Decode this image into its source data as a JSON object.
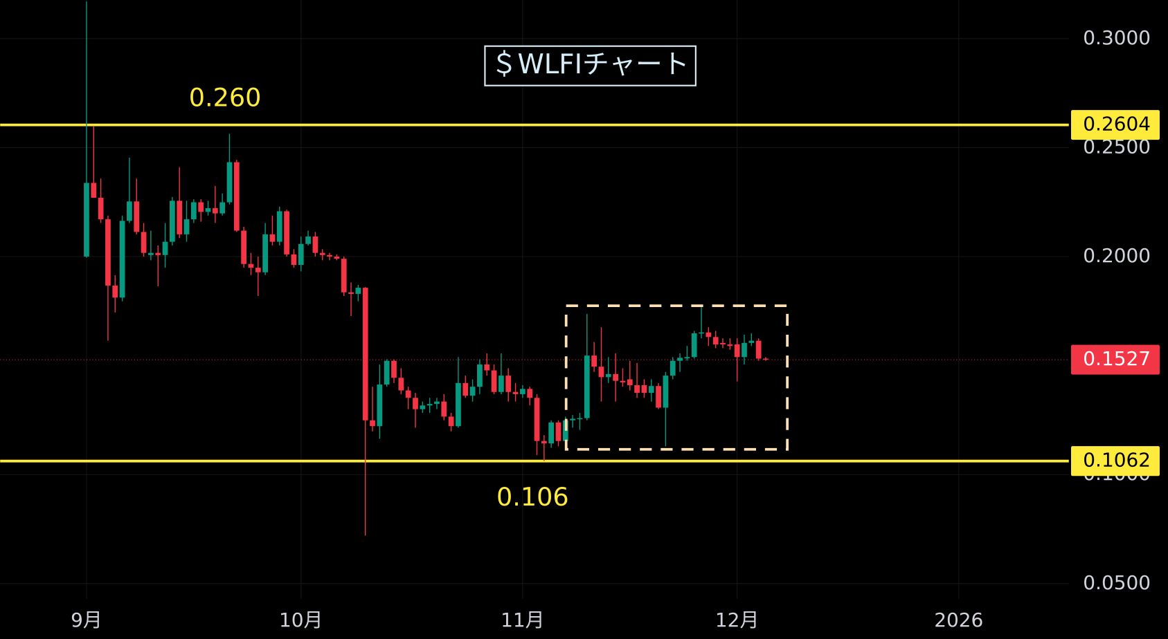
{
  "chart_data": {
    "type": "candlestick",
    "title": "＄WLFIチャート",
    "series": {
      "up_color": "#089981",
      "down_color": "#f23645",
      "open": [
        0.2,
        0.2338,
        0.227,
        0.2171,
        0.1867,
        0.1812,
        0.2164,
        0.2253,
        0.2113,
        0.2007,
        0.2017,
        0.2007,
        0.2068,
        0.2256,
        0.2102,
        0.2171,
        0.2249,
        0.2205,
        0.2222,
        0.2198,
        0.2249,
        0.2433,
        0.2119,
        0.1966,
        0.1949,
        0.1928,
        0.2102,
        0.2068,
        0.2208,
        0.201,
        0.1962,
        0.2058,
        0.2092,
        0.2017,
        0.2007,
        0.2,
        0.199,
        0.1836,
        0.1829,
        0.1857,
        0.1249,
        0.1222,
        0.1413,
        0.1522,
        0.1444,
        0.1386,
        0.1352,
        0.13,
        0.1317,
        0.1324,
        0.1335,
        0.1266,
        0.1222,
        0.142,
        0.1362,
        0.1403,
        0.1505,
        0.1478,
        0.1379,
        0.1454,
        0.1379,
        0.1369,
        0.1393,
        0.1352,
        0.1154,
        0.1143,
        0.1239,
        0.1154,
        0.1249,
        0.1256,
        0.1259,
        0.1546,
        0.1495,
        0.1447,
        0.1461,
        0.143,
        0.1437,
        0.141,
        0.141,
        0.1375,
        0.1406,
        0.1307,
        0.1454,
        0.1522,
        0.1533,
        0.1539,
        0.1648,
        0.1652,
        0.1631,
        0.1604,
        0.1597,
        0.1597,
        0.1539,
        0.1604,
        0.1614,
        0.1532
      ],
      "high": [
        0.317,
        0.2597,
        0.2358,
        0.2188,
        0.1915,
        0.2188,
        0.2454,
        0.2358,
        0.2154,
        0.2119,
        0.2051,
        0.2154,
        0.2273,
        0.241,
        0.2256,
        0.2263,
        0.2263,
        0.2256,
        0.2324,
        0.229,
        0.2563,
        0.2444,
        0.2137,
        0.2017,
        0.2,
        0.2154,
        0.2188,
        0.2229,
        0.2215,
        0.2034,
        0.2092,
        0.2119,
        0.2113,
        0.2034,
        0.2017,
        0.201,
        0.2,
        0.1881,
        0.187,
        0.186,
        0.1403,
        0.1505,
        0.1529,
        0.1529,
        0.1488,
        0.1403,
        0.1375,
        0.1335,
        0.1352,
        0.1352,
        0.1369,
        0.1283,
        0.1539,
        0.1454,
        0.1437,
        0.1529,
        0.1556,
        0.1505,
        0.1556,
        0.1488,
        0.142,
        0.141,
        0.1403,
        0.1369,
        0.1181,
        0.1249,
        0.1249,
        0.1266,
        0.1273,
        0.1283,
        0.1737,
        0.1608,
        0.1676,
        0.1539,
        0.1556,
        0.1488,
        0.1522,
        0.1512,
        0.1437,
        0.1437,
        0.142,
        0.1471,
        0.1539,
        0.1556,
        0.159,
        0.1659,
        0.1768,
        0.1676,
        0.1659,
        0.1625,
        0.1625,
        0.1625,
        0.1642,
        0.1648,
        0.1625,
        0.1539
      ],
      "low": [
        0.1995,
        0.227,
        0.2154,
        0.1614,
        0.1744,
        0.1795,
        0.2154,
        0.2102,
        0.2,
        0.1983,
        0.1864,
        0.1949,
        0.2051,
        0.2085,
        0.2068,
        0.2154,
        0.216,
        0.2188,
        0.2154,
        0.2188,
        0.2239,
        0.2113,
        0.1949,
        0.1915,
        0.1819,
        0.1915,
        0.2051,
        0.2051,
        0.2,
        0.1949,
        0.1932,
        0.2051,
        0.2,
        0.1983,
        0.1983,
        0.1983,
        0.1819,
        0.1727,
        0.1795,
        0.072,
        0.1198,
        0.1164,
        0.1403,
        0.142,
        0.1369,
        0.13,
        0.1215,
        0.1283,
        0.1283,
        0.13,
        0.1249,
        0.1198,
        0.1215,
        0.1352,
        0.1335,
        0.1369,
        0.1454,
        0.1369,
        0.1369,
        0.1335,
        0.1335,
        0.1352,
        0.1317,
        0.1089,
        0.1062,
        0.1123,
        0.113,
        0.113,
        0.1215,
        0.1205,
        0.1249,
        0.1471,
        0.1335,
        0.142,
        0.1335,
        0.1403,
        0.1386,
        0.1352,
        0.1352,
        0.1335,
        0.13,
        0.113,
        0.1437,
        0.1471,
        0.1522,
        0.1532,
        0.1625,
        0.159,
        0.158,
        0.158,
        0.1573,
        0.1427,
        0.1505,
        0.159,
        0.1522,
        0.1522
      ],
      "close": [
        0.2338,
        0.227,
        0.2171,
        0.1867,
        0.1812,
        0.2164,
        0.2253,
        0.2113,
        0.2017,
        0.2017,
        0.2007,
        0.2068,
        0.2256,
        0.2102,
        0.2171,
        0.2249,
        0.2205,
        0.2222,
        0.2198,
        0.2249,
        0.2433,
        0.2119,
        0.1966,
        0.1949,
        0.1928,
        0.2102,
        0.2068,
        0.2208,
        0.201,
        0.1962,
        0.2058,
        0.2092,
        0.2017,
        0.2007,
        0.2,
        0.199,
        0.1836,
        0.1829,
        0.1857,
        0.1249,
        0.1222,
        0.1413,
        0.1522,
        0.1444,
        0.1386,
        0.1352,
        0.13,
        0.1317,
        0.1324,
        0.1335,
        0.1266,
        0.1222,
        0.142,
        0.1362,
        0.1403,
        0.1505,
        0.1478,
        0.1379,
        0.1454,
        0.1379,
        0.1369,
        0.1393,
        0.1352,
        0.1154,
        0.1143,
        0.1239,
        0.1154,
        0.1249,
        0.1256,
        0.1259,
        0.1546,
        0.1495,
        0.1447,
        0.1461,
        0.143,
        0.1423,
        0.141,
        0.1375,
        0.1375,
        0.1406,
        0.1307,
        0.1454,
        0.1522,
        0.1536,
        0.1539,
        0.1648,
        0.1652,
        0.1631,
        0.1597,
        0.1597,
        0.159,
        0.1539,
        0.1604,
        0.1614,
        0.1532,
        0.1527
      ]
    },
    "ylim": [
      0.043,
      0.3177
    ],
    "yticks": [
      {
        "value": 0.05,
        "label": "0.0500"
      },
      {
        "value": 0.1,
        "label": "0.1000"
      },
      {
        "value": 0.2,
        "label": "0.2000"
      },
      {
        "value": 0.25,
        "label": "0.2500"
      },
      {
        "value": 0.3,
        "label": "0.3000"
      }
    ],
    "xticks": [
      {
        "value": 0,
        "label": "9月"
      },
      {
        "value": 30,
        "label": "10月"
      },
      {
        "value": 61,
        "label": "11月"
      },
      {
        "value": 91,
        "label": "12月"
      },
      {
        "value": 122,
        "label": "2026"
      }
    ],
    "levels": [
      0.2604,
      0.1062
    ],
    "level_color": "#ffeb3b",
    "last_price": 0.1527,
    "annotations": [
      {
        "text": "0.260",
        "value": 0.2604
      },
      {
        "text": "0.106",
        "value": 0.1062
      }
    ],
    "grid": true
  }
}
